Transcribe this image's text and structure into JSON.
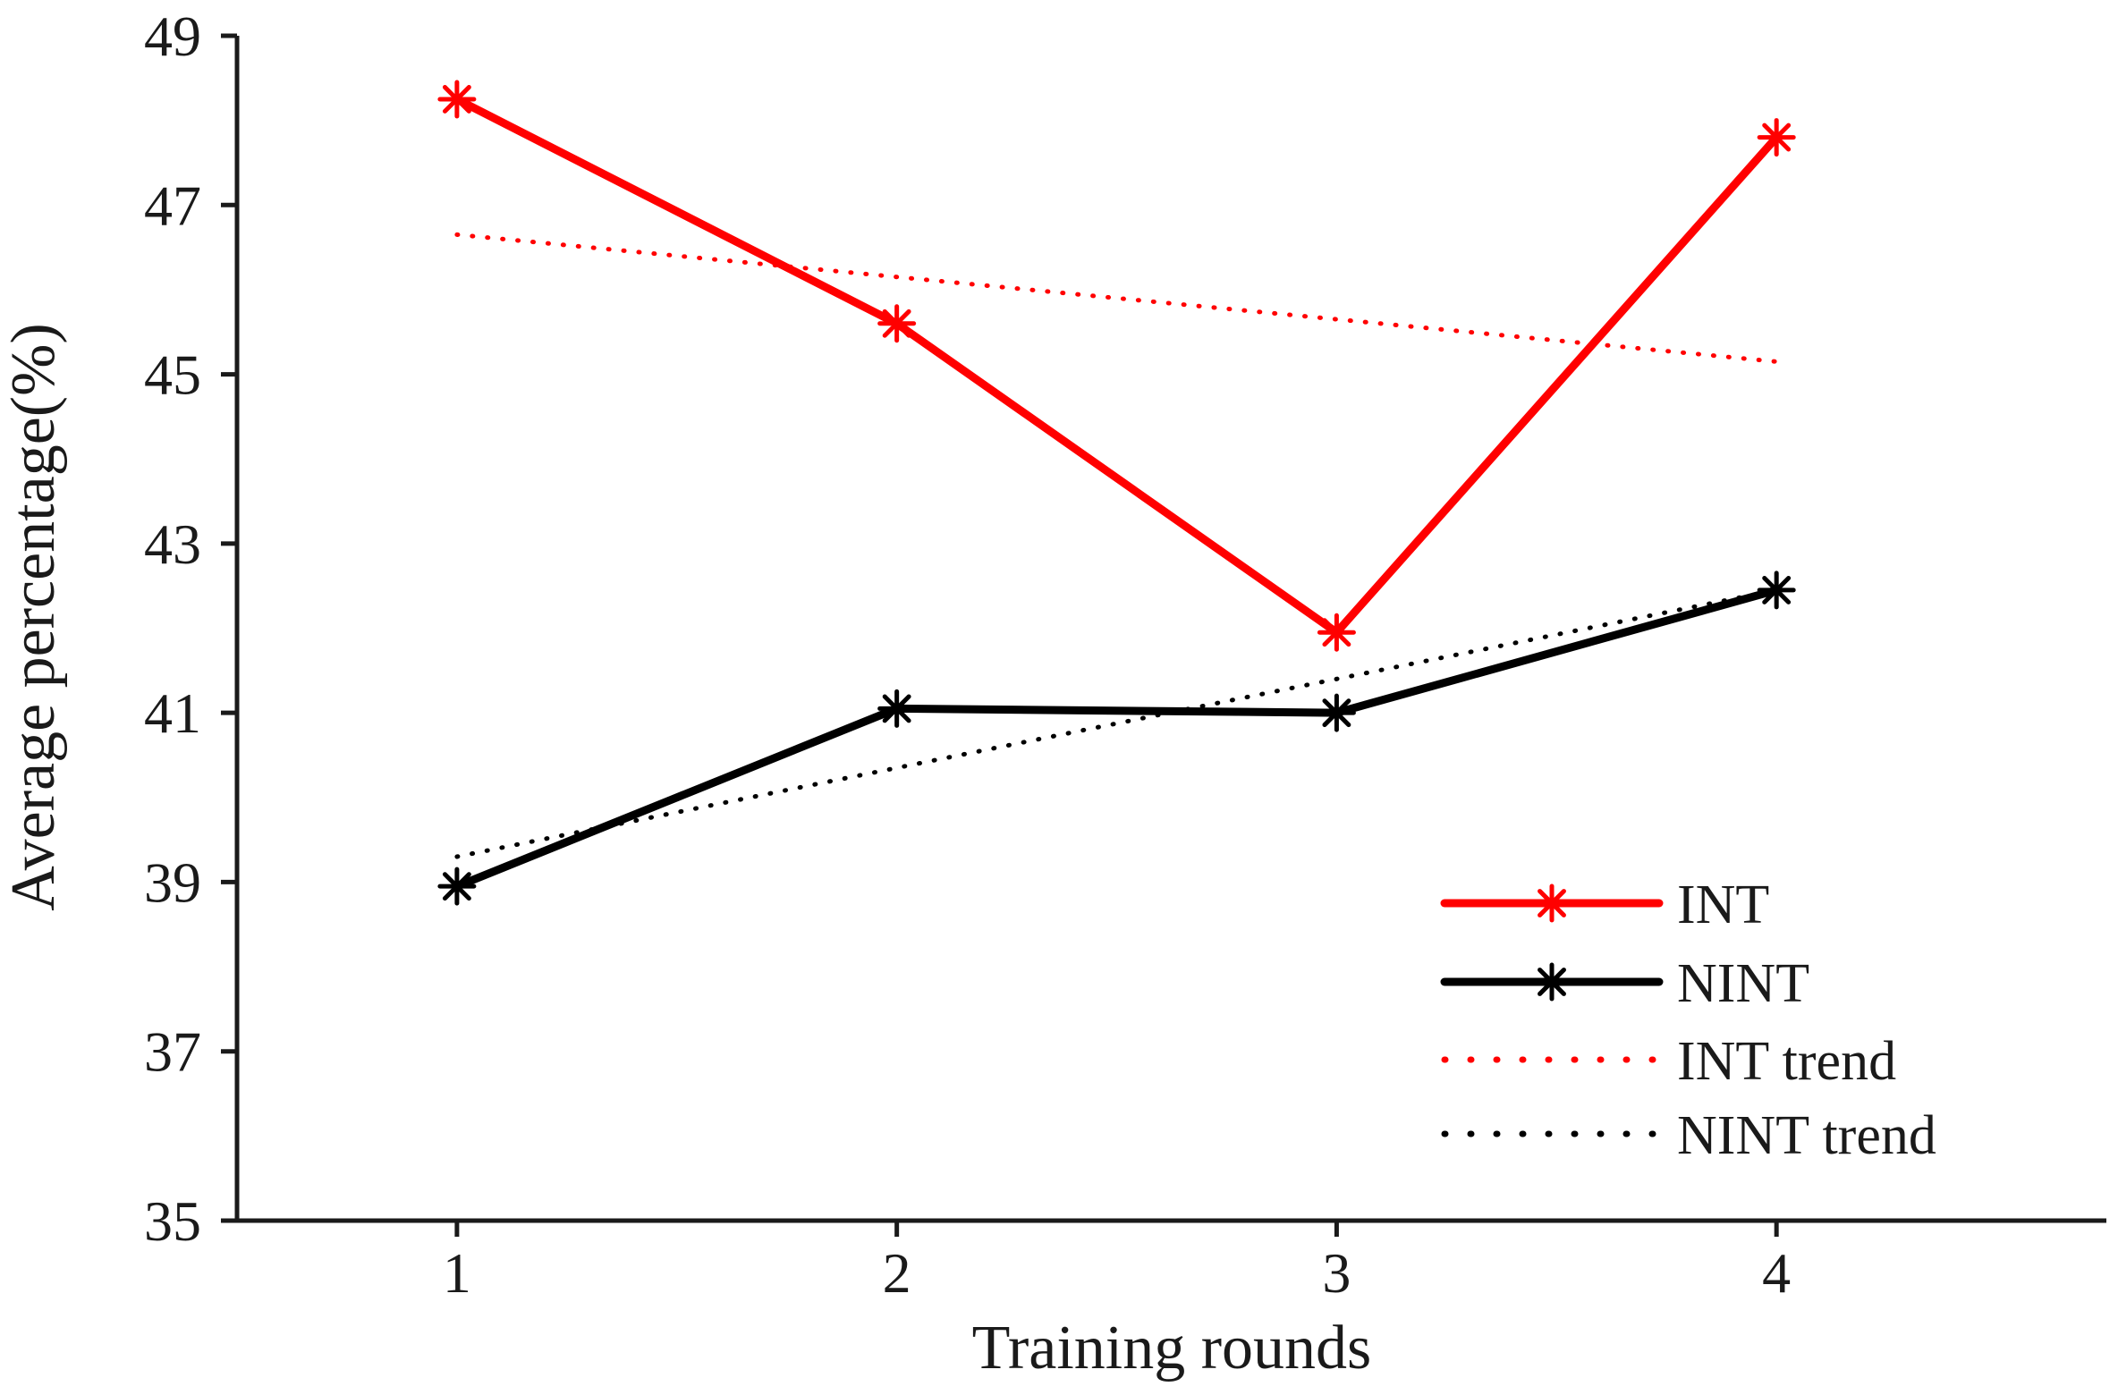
{
  "chart_data": {
    "type": "line",
    "title": "",
    "xlabel": "Training rounds",
    "ylabel": "Average percentage(%)",
    "x": [
      1,
      2,
      3,
      4
    ],
    "x_ticks": [
      "1",
      "2",
      "3",
      "4"
    ],
    "xlim": [
      0.5,
      4.75
    ],
    "y_ticks": [
      "35",
      "37",
      "39",
      "41",
      "43",
      "45",
      "47",
      "49"
    ],
    "ylim": [
      35,
      49
    ],
    "grid": false,
    "legend_position": "bottom-right",
    "series": [
      {
        "name": "INT",
        "values": [
          48.25,
          45.6,
          41.95,
          47.8
        ],
        "color": "#ff0000",
        "style": "solid",
        "marker": "asterisk"
      },
      {
        "name": "NINT",
        "values": [
          38.95,
          41.05,
          41.0,
          42.45
        ],
        "color": "#000000",
        "style": "solid",
        "marker": "asterisk"
      },
      {
        "name": "INT trend",
        "values": [
          46.65,
          46.15,
          45.65,
          45.15
        ],
        "color": "#ff0000",
        "style": "dotted",
        "marker": "none"
      },
      {
        "name": "NINT trend",
        "values": [
          39.3,
          40.35,
          41.4,
          42.45
        ],
        "color": "#000000",
        "style": "dotted",
        "marker": "none"
      }
    ]
  }
}
